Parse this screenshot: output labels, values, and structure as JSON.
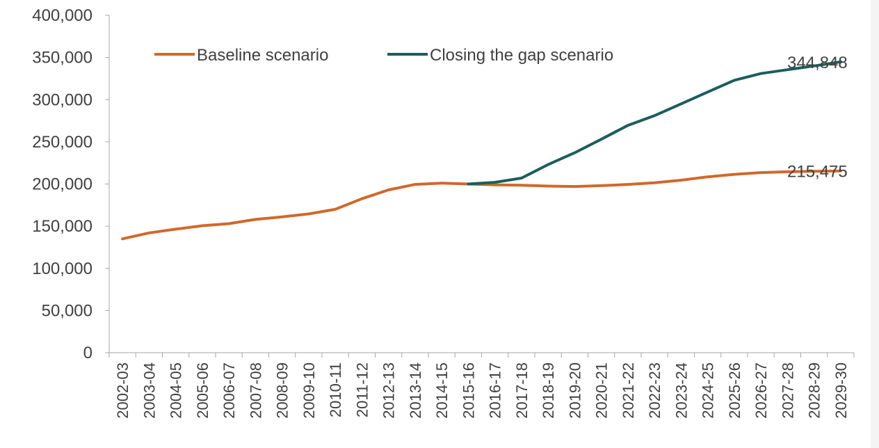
{
  "chart_data": {
    "type": "line",
    "title": "",
    "xlabel": "",
    "ylabel": "",
    "ylim": [
      0,
      400000
    ],
    "yticks": [
      0,
      50000,
      100000,
      150000,
      200000,
      250000,
      300000,
      350000,
      400000
    ],
    "ytick_labels": [
      "0",
      "50,000",
      "100,000",
      "150,000",
      "200,000",
      "250,000",
      "300,000",
      "350,000",
      "400,000"
    ],
    "categories": [
      "2002-03",
      "2003-04",
      "2004-05",
      "2005-06",
      "2006-07",
      "2007-08",
      "2008-09",
      "2009-10",
      "2010-11",
      "2011-12",
      "2012-13",
      "2013-14",
      "2014-15",
      "2015-16",
      "2016-17",
      "2017-18",
      "2018-19",
      "2019-20",
      "2020-21",
      "2021-22",
      "2022-23",
      "2023-24",
      "2024-25",
      "2025-26",
      "2026-27",
      "2027-28",
      "2028-29",
      "2029-30"
    ],
    "legend_position": "top",
    "grid": false,
    "series": [
      {
        "name": "Baseline scenario",
        "color": "#d0692a",
        "values": [
          135000,
          142000,
          146500,
          150500,
          153000,
          158000,
          161000,
          164500,
          170000,
          182500,
          193000,
          199500,
          201000,
          200000,
          199000,
          198500,
          197500,
          197000,
          198000,
          199500,
          201500,
          204500,
          208500,
          211500,
          213500,
          214500,
          215000,
          215475
        ],
        "end_label": "215,475"
      },
      {
        "name": "Closing the gap scenario",
        "color": "#1a5e5e",
        "values": [
          null,
          null,
          null,
          null,
          null,
          null,
          null,
          null,
          null,
          null,
          null,
          null,
          null,
          200000,
          202000,
          207000,
          223000,
          237000,
          253000,
          269500,
          281000,
          295000,
          309000,
          323000,
          331000,
          335500,
          340000,
          344848
        ],
        "end_label": "344,848"
      }
    ]
  }
}
